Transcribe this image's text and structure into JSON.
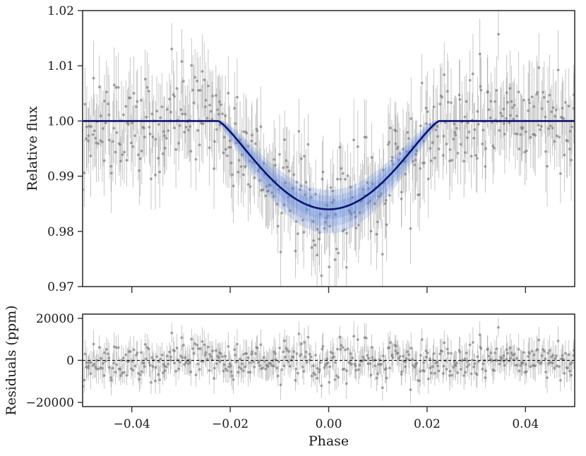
{
  "chart_data": [
    {
      "panel": "top",
      "type": "scatter",
      "title": "",
      "xlabel": "",
      "ylabel": "Relative flux",
      "xlim": [
        -0.05,
        0.05
      ],
      "ylim": [
        0.97,
        1.02
      ],
      "xticks": [
        -0.04,
        -0.02,
        0.0,
        0.02,
        0.04
      ],
      "show_xtick_labels": false,
      "yticks": [
        0.97,
        0.98,
        0.99,
        1.0,
        1.01,
        1.02
      ],
      "ytick_labels": [
        "0.97",
        "0.98",
        "0.99",
        "1.00",
        "1.01",
        "1.02"
      ],
      "grid": false,
      "legend": "none",
      "data_points": {
        "phase_range": [
          -0.05,
          0.05
        ],
        "count": 520,
        "typical_scatter": 0.0045,
        "typical_errorbar": 0.006,
        "color": "#7f7f7f"
      },
      "model": {
        "color": "#0b1470",
        "band_color": "#5b86e0",
        "baseline": 1.0,
        "ingress_start": -0.0225,
        "egress_end": 0.0225,
        "minimum_phase": 0.0,
        "minimum_flux": 0.984,
        "band_halfwidth_at_minimum": 0.0035
      }
    },
    {
      "panel": "bottom",
      "type": "scatter",
      "title": "",
      "xlabel": "Phase",
      "ylabel": "Residuals (ppm)",
      "xlim": [
        -0.05,
        0.05
      ],
      "ylim": [
        -22000,
        22000
      ],
      "xticks": [
        -0.04,
        -0.02,
        0.0,
        0.02,
        0.04
      ],
      "xtick_labels": [
        "−0.04",
        "−0.02",
        "0.00",
        "0.02",
        "0.04"
      ],
      "yticks": [
        -20000,
        0,
        20000
      ],
      "ytick_labels": [
        "−20000",
        "0",
        "20000"
      ],
      "grid": false,
      "legend": "none",
      "reference_line": {
        "y": 0,
        "style": "dashed",
        "color": "#000000"
      },
      "data_points": {
        "count": 520,
        "typical_scatter": 4500,
        "typical_errorbar": 6000,
        "color": "#7f7f7f"
      }
    }
  ]
}
